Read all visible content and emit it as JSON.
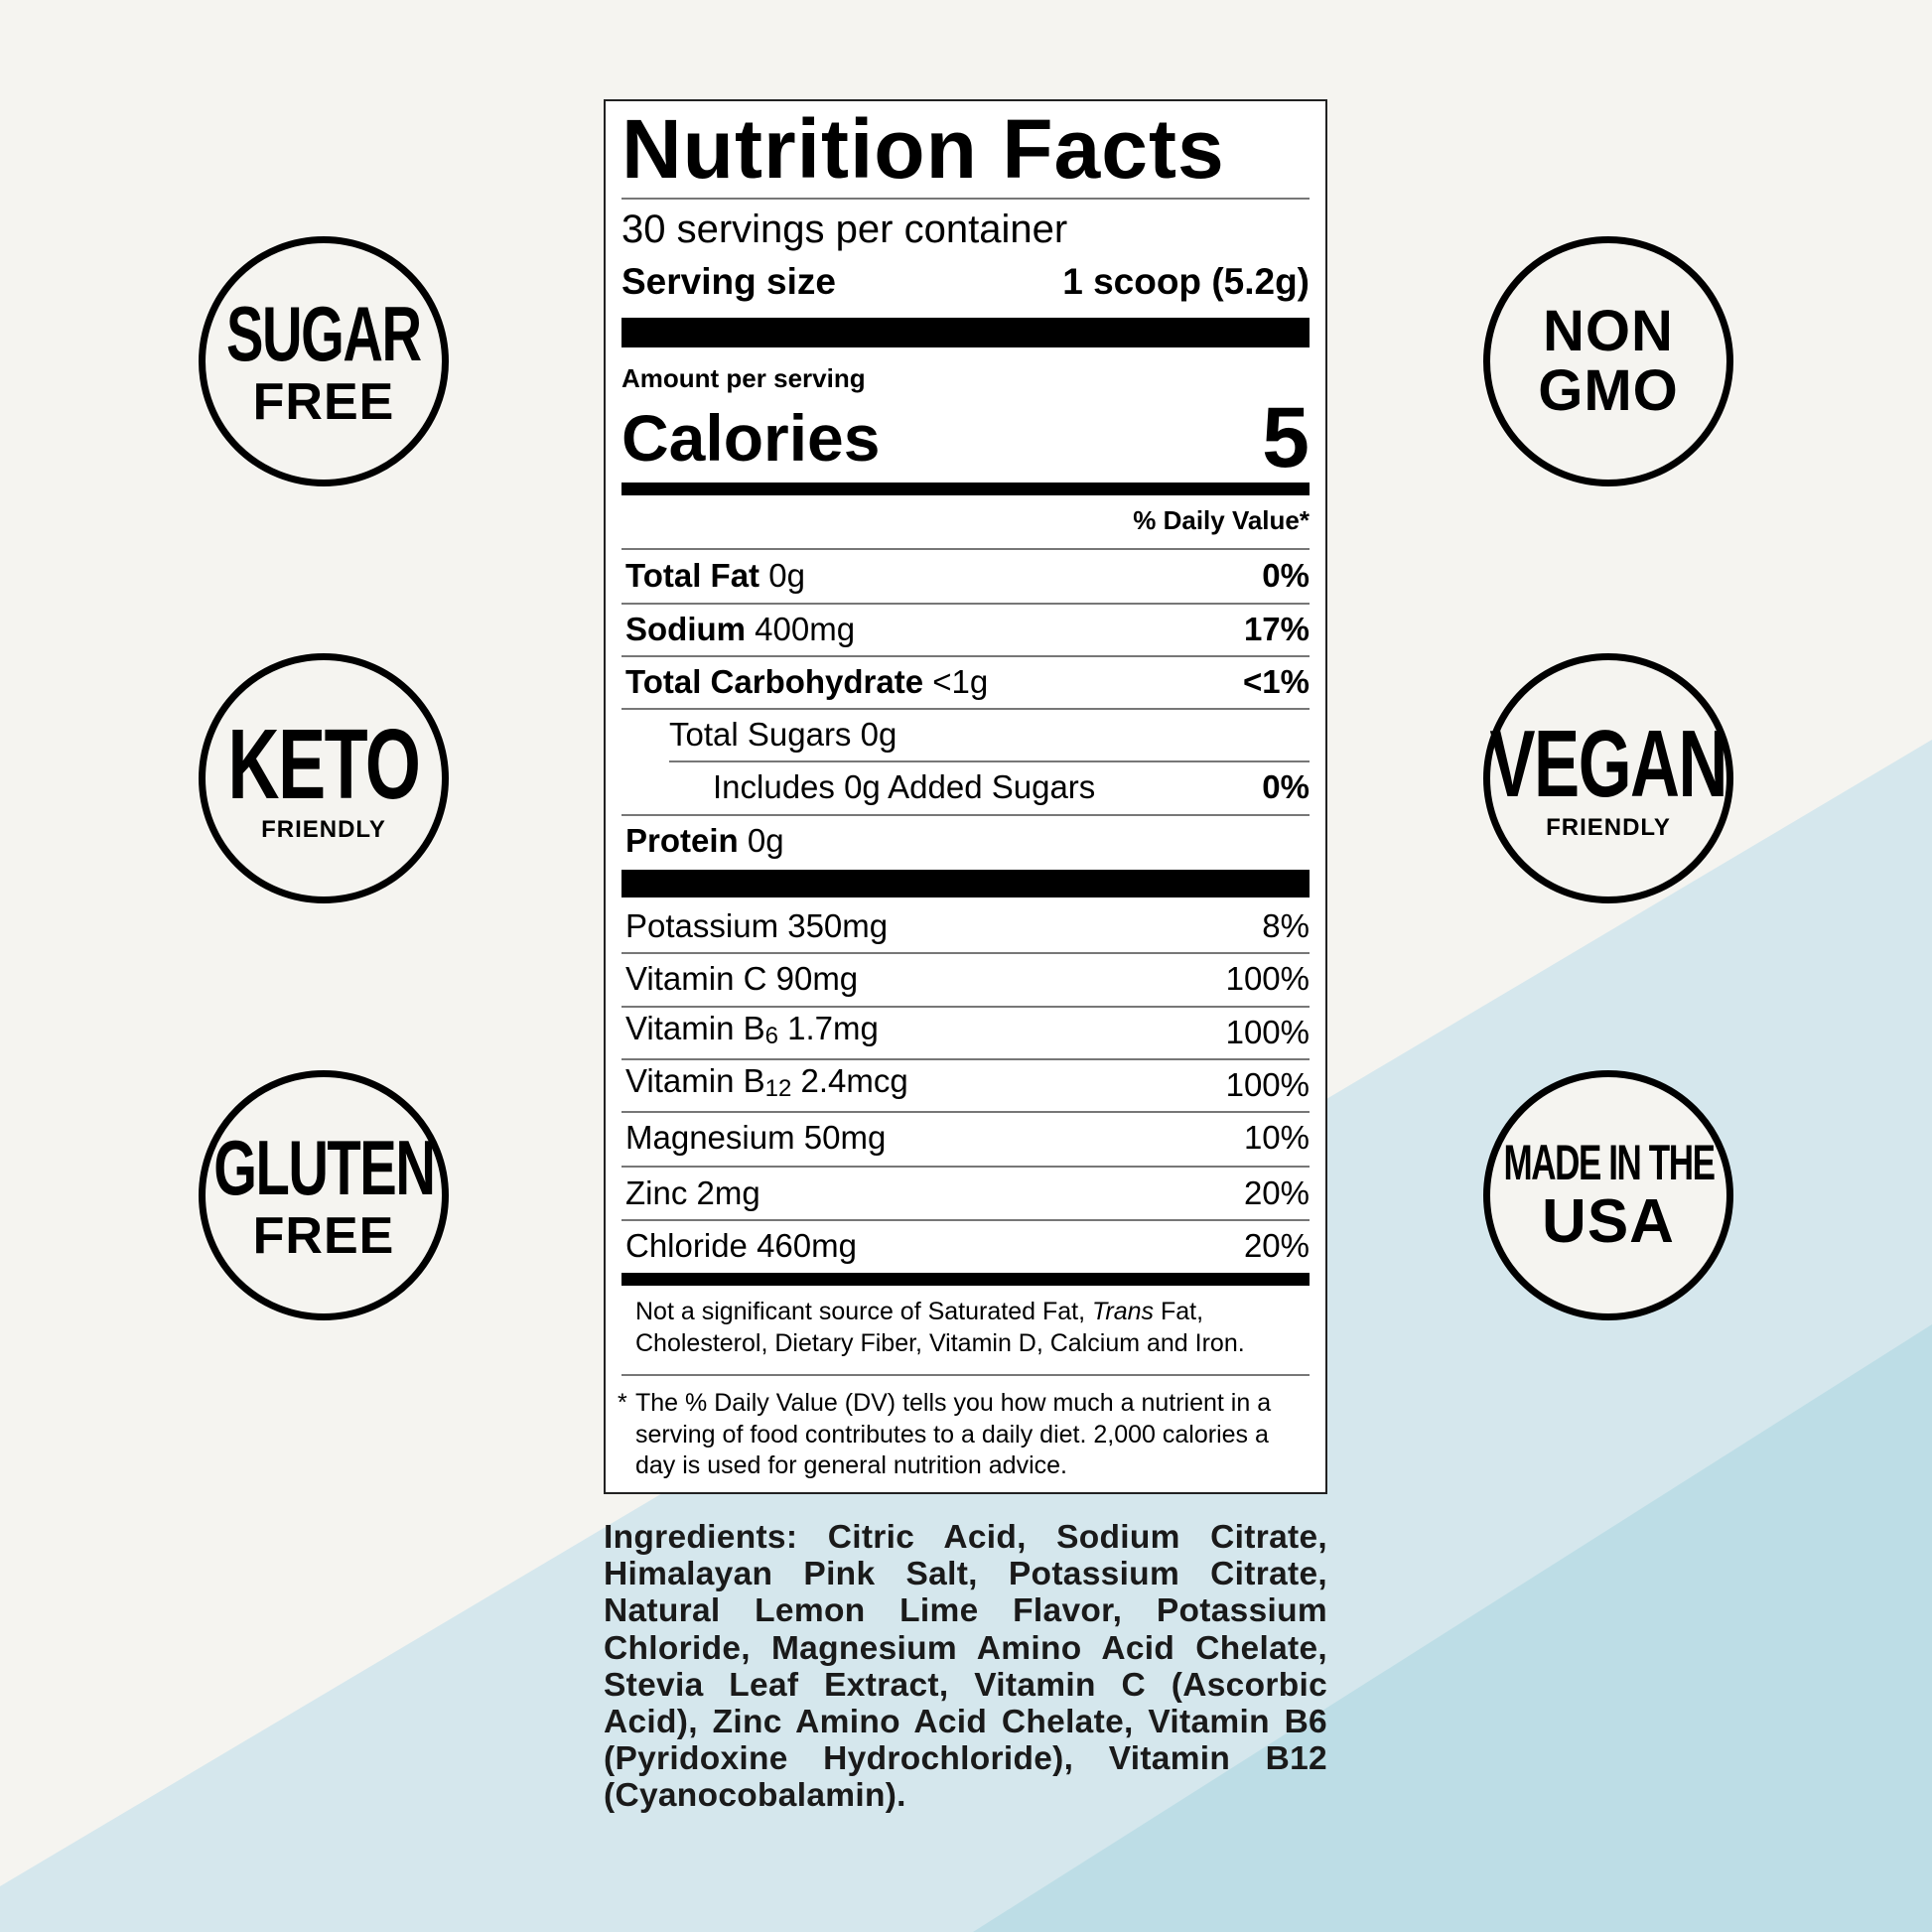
{
  "colors": {
    "background": "#f5f4f0",
    "light_blue": "#d5e7ed",
    "blue": "#bddde6"
  },
  "badges": {
    "sugar_free": {
      "line1": "SUGAR",
      "line2": "FREE"
    },
    "keto": {
      "line1": "KETO",
      "line2": "FRIENDLY"
    },
    "gluten_free": {
      "line1": "GLUTEN",
      "line2": "FREE"
    },
    "non_gmo": {
      "line1": "NON",
      "line2": "GMO"
    },
    "vegan": {
      "line1": "VEGAN",
      "line2": "FRIENDLY"
    },
    "usa": {
      "line1": "MADE IN THE",
      "line2": "USA"
    }
  },
  "label": {
    "title": "Nutrition Facts",
    "servings": "30 servings per container",
    "serving_size_label": "Serving size",
    "serving_size_value": "1 scoop (5.2g)",
    "amount_per_serving": "Amount per serving",
    "calories_label": "Calories",
    "calories_value": "5",
    "daily_value_header": "% Daily Value*",
    "nutrients": [
      {
        "name": "Total Fat",
        "amount": "0g",
        "dv": "0%"
      },
      {
        "name": "Sodium",
        "amount": "400mg",
        "dv": "17%"
      },
      {
        "name": "Total Carbohydrate",
        "amount": "<1g",
        "dv": "<1%"
      },
      {
        "name": "",
        "amount": "Total Sugars 0g",
        "dv": ""
      },
      {
        "name": "",
        "amount": "Includes 0g Added Sugars",
        "dv": "0%"
      },
      {
        "name": "Protein",
        "amount": "0g",
        "dv": ""
      }
    ],
    "micros": [
      {
        "name": "Potassium 350mg",
        "dv": "8%"
      },
      {
        "name": "Vitamin C 90mg",
        "dv": "100%"
      },
      {
        "name": "Vitamin B",
        "sub": "6",
        "amount": "1.7mg",
        "dv": "100%"
      },
      {
        "name": "Vitamin B",
        "sub": "12",
        "amount": "2.4mcg",
        "dv": "100%"
      },
      {
        "name": "Magnesium 50mg",
        "dv": "10%"
      },
      {
        "name": "Zinc 2mg",
        "dv": "20%"
      },
      {
        "name": "Chloride 460mg",
        "dv": "20%"
      }
    ],
    "not_significant_a": "Not a significant source of Saturated Fat, ",
    "not_significant_trans": "Trans",
    "not_significant_b": " Fat, Cholesterol, Dietary Fiber, Vitamin D, Calcium and Iron.",
    "footnote_star": "*",
    "footnote": "The % Daily Value (DV) tells you how much a nutrient in a serving of food contributes to a daily diet. 2,000 calories a day is used for general nutrition advice."
  },
  "ingredients": "Ingredients: Citric Acid,  Sodium Citrate, Himalayan Pink Salt, Potassium Citrate, Natural Lemon Lime Flavor, Potassium Chloride, Magnesium Amino Acid Chelate, Stevia Leaf Extract, Vitamin C (Ascorbic Acid), Zinc Amino Acid Chelate, Vitamin B6 (Pyridoxine Hydrochloride), Vitamin B12 (Cyanocobalamin)."
}
